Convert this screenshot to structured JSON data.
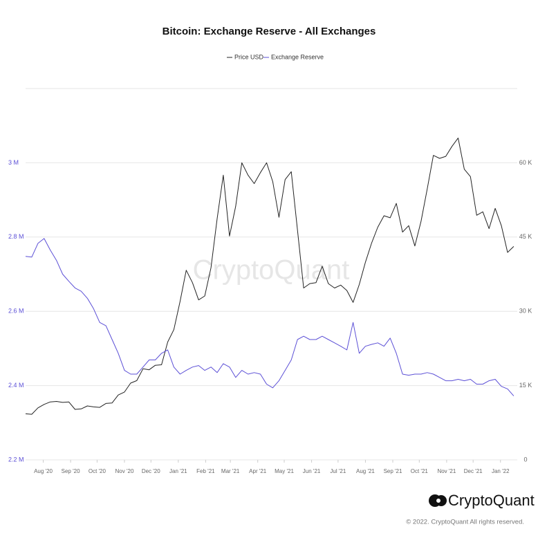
{
  "chart_data": {
    "type": "line",
    "title": "Bitcoin: Exchange Reserve - All Exchanges",
    "watermark": "CryptoQuant",
    "x": [
      193,
      200,
      207,
      214,
      221,
      228,
      235,
      242,
      249,
      256,
      263,
      270,
      277,
      284,
      291,
      298,
      305,
      312,
      319,
      326,
      333,
      340,
      347,
      354,
      361,
      368,
      375,
      382,
      389,
      396,
      403,
      410,
      417,
      424,
      431,
      438,
      445,
      452,
      459,
      466,
      473,
      480,
      487,
      494,
      501,
      508,
      515,
      522,
      529,
      536,
      543,
      550,
      557,
      564,
      571,
      578,
      585,
      592,
      599,
      606,
      613,
      620,
      627,
      634,
      641,
      648,
      655,
      662,
      669,
      676,
      683,
      690,
      697,
      704,
      711,
      718,
      725,
      732,
      739,
      746
    ],
    "xlim": [
      193,
      750
    ],
    "xticks": [
      {
        "value": 213,
        "label": "Aug '20"
      },
      {
        "value": 244,
        "label": "Sep '20"
      },
      {
        "value": 274,
        "label": "Oct '20"
      },
      {
        "value": 305,
        "label": "Nov '20"
      },
      {
        "value": 335,
        "label": "Dec '20"
      },
      {
        "value": 366,
        "label": "Jan '21"
      },
      {
        "value": 397,
        "label": "Feb '21"
      },
      {
        "value": 425,
        "label": "Mar '21"
      },
      {
        "value": 456,
        "label": "Apr '21"
      },
      {
        "value": 486,
        "label": "May '21"
      },
      {
        "value": 517,
        "label": "Jun '21"
      },
      {
        "value": 547,
        "label": "Jul '21"
      },
      {
        "value": 578,
        "label": "Aug '21"
      },
      {
        "value": 609,
        "label": "Sep '21"
      },
      {
        "value": 639,
        "label": "Oct '21"
      },
      {
        "value": 670,
        "label": "Nov '21"
      },
      {
        "value": 700,
        "label": "Dec '21"
      },
      {
        "value": 731,
        "label": "Jan '22"
      }
    ],
    "ylim": [
      2200000,
      3200000
    ],
    "yticks": [
      {
        "value": 2200000,
        "label": "2.2 M"
      },
      {
        "value": 2400000,
        "label": "2.4 M"
      },
      {
        "value": 2600000,
        "label": "2.6 M"
      },
      {
        "value": 2800000,
        "label": "2.8 M"
      },
      {
        "value": 3000000,
        "label": "3 M"
      }
    ],
    "y2lim": [
      0,
      75000
    ],
    "y2ticks": [
      0,
      {
        "value": 15000,
        "label": "15 K"
      },
      {
        "value": 30000,
        "label": "30 K"
      },
      {
        "value": 45000,
        "label": "45 K"
      },
      {
        "value": 60000,
        "label": "60 K"
      }
    ],
    "grid": true,
    "series": [
      {
        "name": "Price USD",
        "color": "#222222",
        "axis": "y2",
        "values": [
          9300,
          9200,
          10500,
          11200,
          11700,
          11800,
          11600,
          11700,
          10200,
          10300,
          10900,
          10700,
          10600,
          11400,
          11500,
          13100,
          13700,
          15500,
          16000,
          18400,
          18200,
          19100,
          19200,
          23800,
          26300,
          32000,
          38300,
          35800,
          32300,
          33100,
          38800,
          48700,
          57500,
          45200,
          51200,
          60000,
          57500,
          55800,
          58000,
          60000,
          56200,
          49000,
          56600,
          58200,
          46400,
          34700,
          35600,
          35800,
          39100,
          35600,
          34700,
          35300,
          34200,
          31800,
          35400,
          39900,
          43800,
          47000,
          49300,
          48900,
          51800,
          46000,
          47300,
          43200,
          48200,
          54700,
          61500,
          60900,
          61300,
          63300,
          65000,
          58700,
          57200,
          49400,
          50100,
          46700,
          50800,
          47300,
          41900,
          43100
        ]
      },
      {
        "name": "Exchange Reserve",
        "color": "#5b4fd6",
        "values": [
          2748000,
          2746000,
          2783000,
          2796000,
          2765000,
          2737000,
          2700000,
          2681000,
          2663000,
          2654000,
          2635000,
          2607000,
          2570000,
          2561000,
          2524000,
          2487000,
          2441000,
          2431000,
          2431000,
          2450000,
          2469000,
          2469000,
          2487000,
          2496000,
          2450000,
          2431000,
          2441000,
          2450000,
          2454000,
          2441000,
          2450000,
          2435000,
          2459000,
          2450000,
          2422000,
          2441000,
          2431000,
          2435000,
          2431000,
          2404000,
          2394000,
          2413000,
          2441000,
          2469000,
          2524000,
          2533000,
          2524000,
          2524000,
          2533000,
          2524000,
          2515000,
          2506000,
          2496000,
          2570000,
          2487000,
          2506000,
          2511000,
          2515000,
          2506000,
          2528000,
          2487000,
          2431000,
          2428000,
          2431000,
          2431000,
          2435000,
          2431000,
          2422000,
          2413000,
          2413000,
          2417000,
          2413000,
          2417000,
          2404000,
          2404000,
          2413000,
          2417000,
          2398000,
          2391000,
          2372000
        ]
      }
    ]
  },
  "footer": {
    "brand": "CryptoQuant",
    "copyright": "© 2022. CryptoQuant All rights reserved."
  }
}
